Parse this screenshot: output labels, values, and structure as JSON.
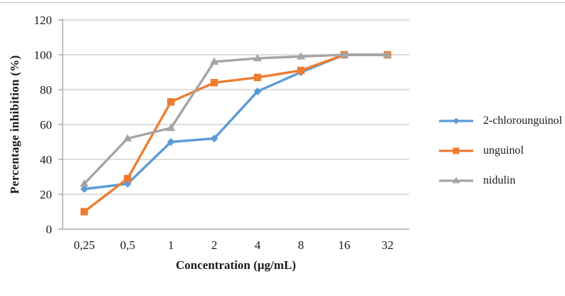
{
  "figure": {
    "background": "#ffffff",
    "top_rule_color": "#c6c6c6"
  },
  "chart_data": {
    "type": "line",
    "title": "",
    "xlabel": "Concentration (µg/mL)",
    "ylabel": "Percentage inhibition (%)",
    "categories": [
      "0,25",
      "0,5",
      "1",
      "2",
      "4",
      "8",
      "16",
      "32"
    ],
    "series": [
      {
        "name": "2-chlorounguinol",
        "color": "#5B9BD5",
        "marker": "diamond",
        "values": [
          23,
          26,
          50,
          52,
          79,
          90,
          100,
          100
        ]
      },
      {
        "name": "unguinol",
        "color": "#ED7D31",
        "marker": "square",
        "values": [
          10,
          29,
          73,
          84,
          87,
          91,
          100,
          100
        ]
      },
      {
        "name": "nidulin",
        "color": "#A5A5A5",
        "marker": "triangle",
        "values": [
          26,
          52,
          58,
          96,
          98,
          99,
          100,
          100
        ]
      }
    ],
    "y_ticks": [
      0,
      20,
      40,
      60,
      80,
      100,
      120
    ],
    "ylim": [
      0,
      120
    ],
    "grid": true,
    "gridline_color": "#c9c9c9",
    "axis_color": "#9e9e9e",
    "text_color": "#1a1a1a",
    "legend_position": "right"
  }
}
